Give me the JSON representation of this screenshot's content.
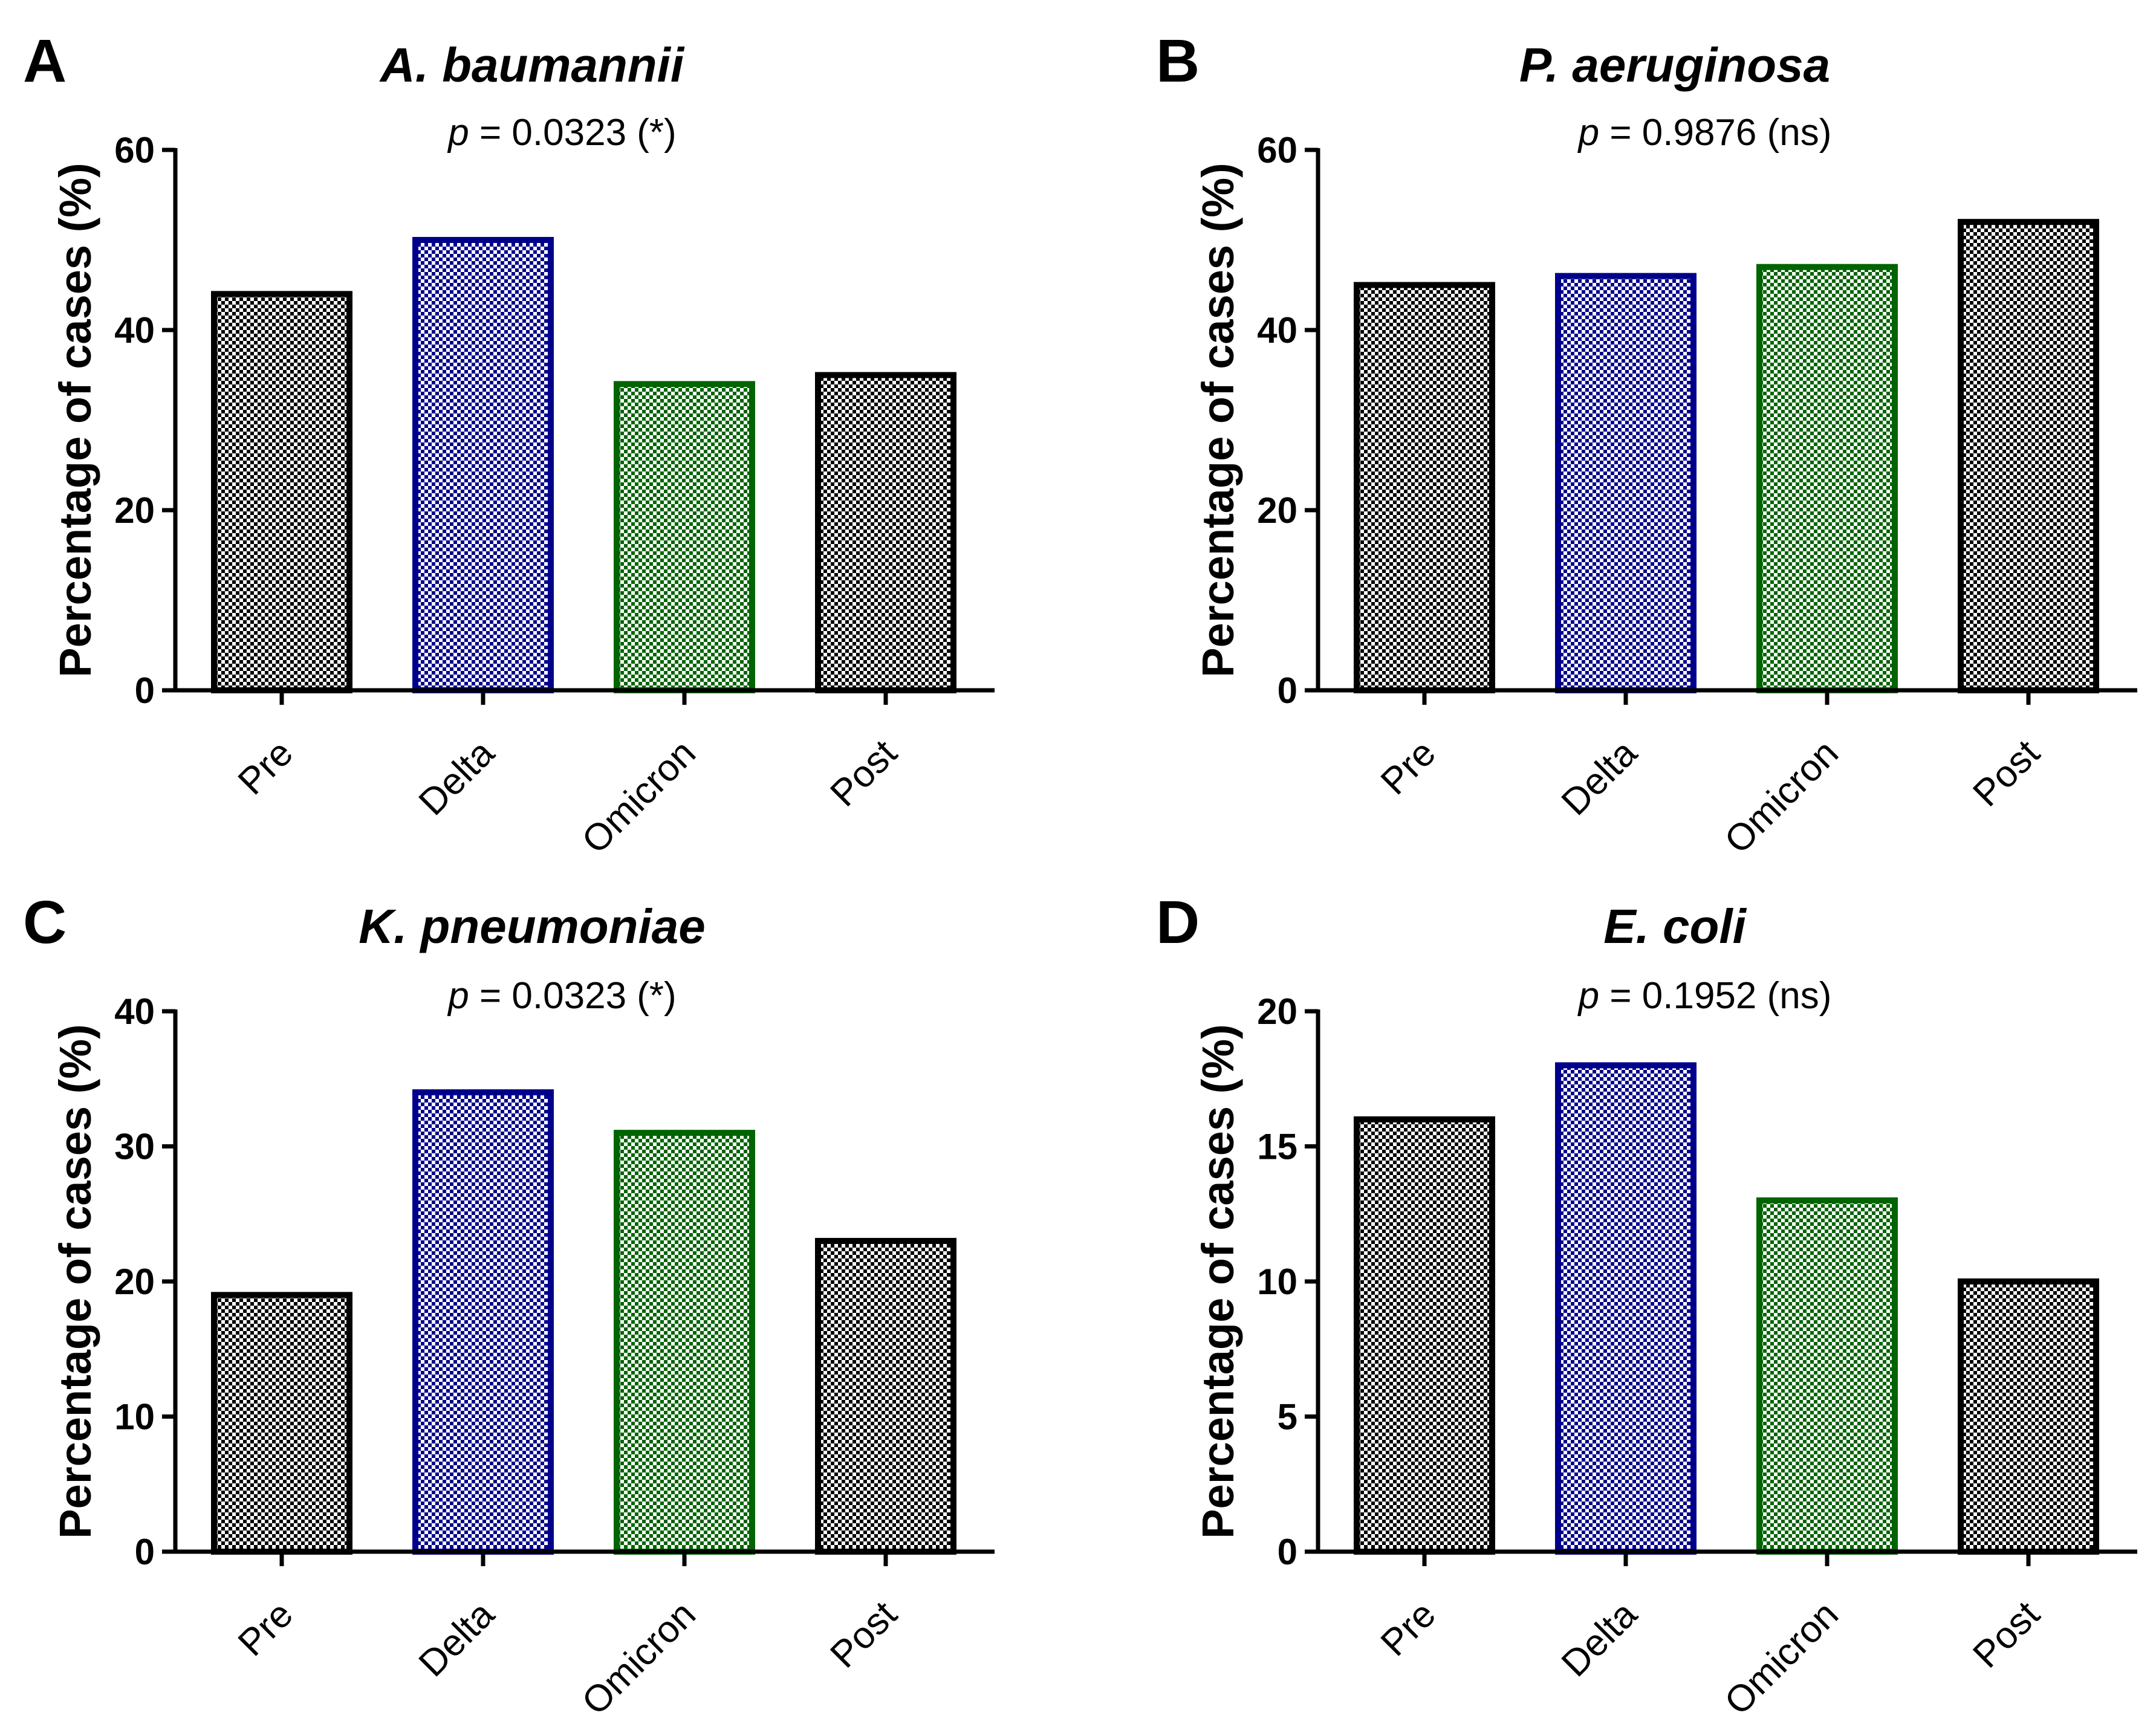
{
  "chart_data": [
    {
      "type": "bar",
      "panel": "A",
      "title": "A. baumannii",
      "pvalue": {
        "p": "p",
        "text": " = 0.0323 (*)"
      },
      "ylabel": "Percentage of cases (%)",
      "categories": [
        "Pre",
        "Delta",
        "Omicron",
        "Post"
      ],
      "values": [
        44,
        50,
        34,
        35
      ],
      "ylim": [
        0,
        60
      ],
      "yticks": [
        0,
        20,
        40,
        60
      ],
      "colors": [
        "#000000",
        "#00008B",
        "#006400",
        "#000000"
      ]
    },
    {
      "type": "bar",
      "panel": "B",
      "title": "P. aeruginosa",
      "pvalue": {
        "p": "p",
        "text": " = 0.9876 (ns)"
      },
      "ylabel": "Percentage of cases (%)",
      "categories": [
        "Pre",
        "Delta",
        "Omicron",
        "Post"
      ],
      "values": [
        45,
        46,
        47,
        52
      ],
      "ylim": [
        0,
        60
      ],
      "yticks": [
        0,
        20,
        40,
        60
      ],
      "colors": [
        "#000000",
        "#00008B",
        "#006400",
        "#000000"
      ]
    },
    {
      "type": "bar",
      "panel": "C",
      "title": "K. pneumoniae",
      "pvalue": {
        "p": "p",
        "text": " = 0.0323 (*)"
      },
      "ylabel": "Percentage of cases (%)",
      "categories": [
        "Pre",
        "Delta",
        "Omicron",
        "Post"
      ],
      "values": [
        19,
        34,
        31,
        23
      ],
      "ylim": [
        0,
        40
      ],
      "yticks": [
        0,
        10,
        20,
        30,
        40
      ],
      "colors": [
        "#000000",
        "#00008B",
        "#006400",
        "#000000"
      ]
    },
    {
      "type": "bar",
      "panel": "D",
      "title": "E. coli",
      "pvalue": {
        "p": "p",
        "text": " = 0.1952 (ns)"
      },
      "ylabel": "Percentage of cases (%)",
      "categories": [
        "Pre",
        "Delta",
        "Omicron",
        "Post"
      ],
      "values": [
        16,
        18,
        13,
        10
      ],
      "ylim": [
        0,
        20
      ],
      "yticks": [
        0,
        5,
        10,
        15,
        20
      ],
      "colors": [
        "#000000",
        "#00008B",
        "#006400",
        "#000000"
      ]
    }
  ]
}
